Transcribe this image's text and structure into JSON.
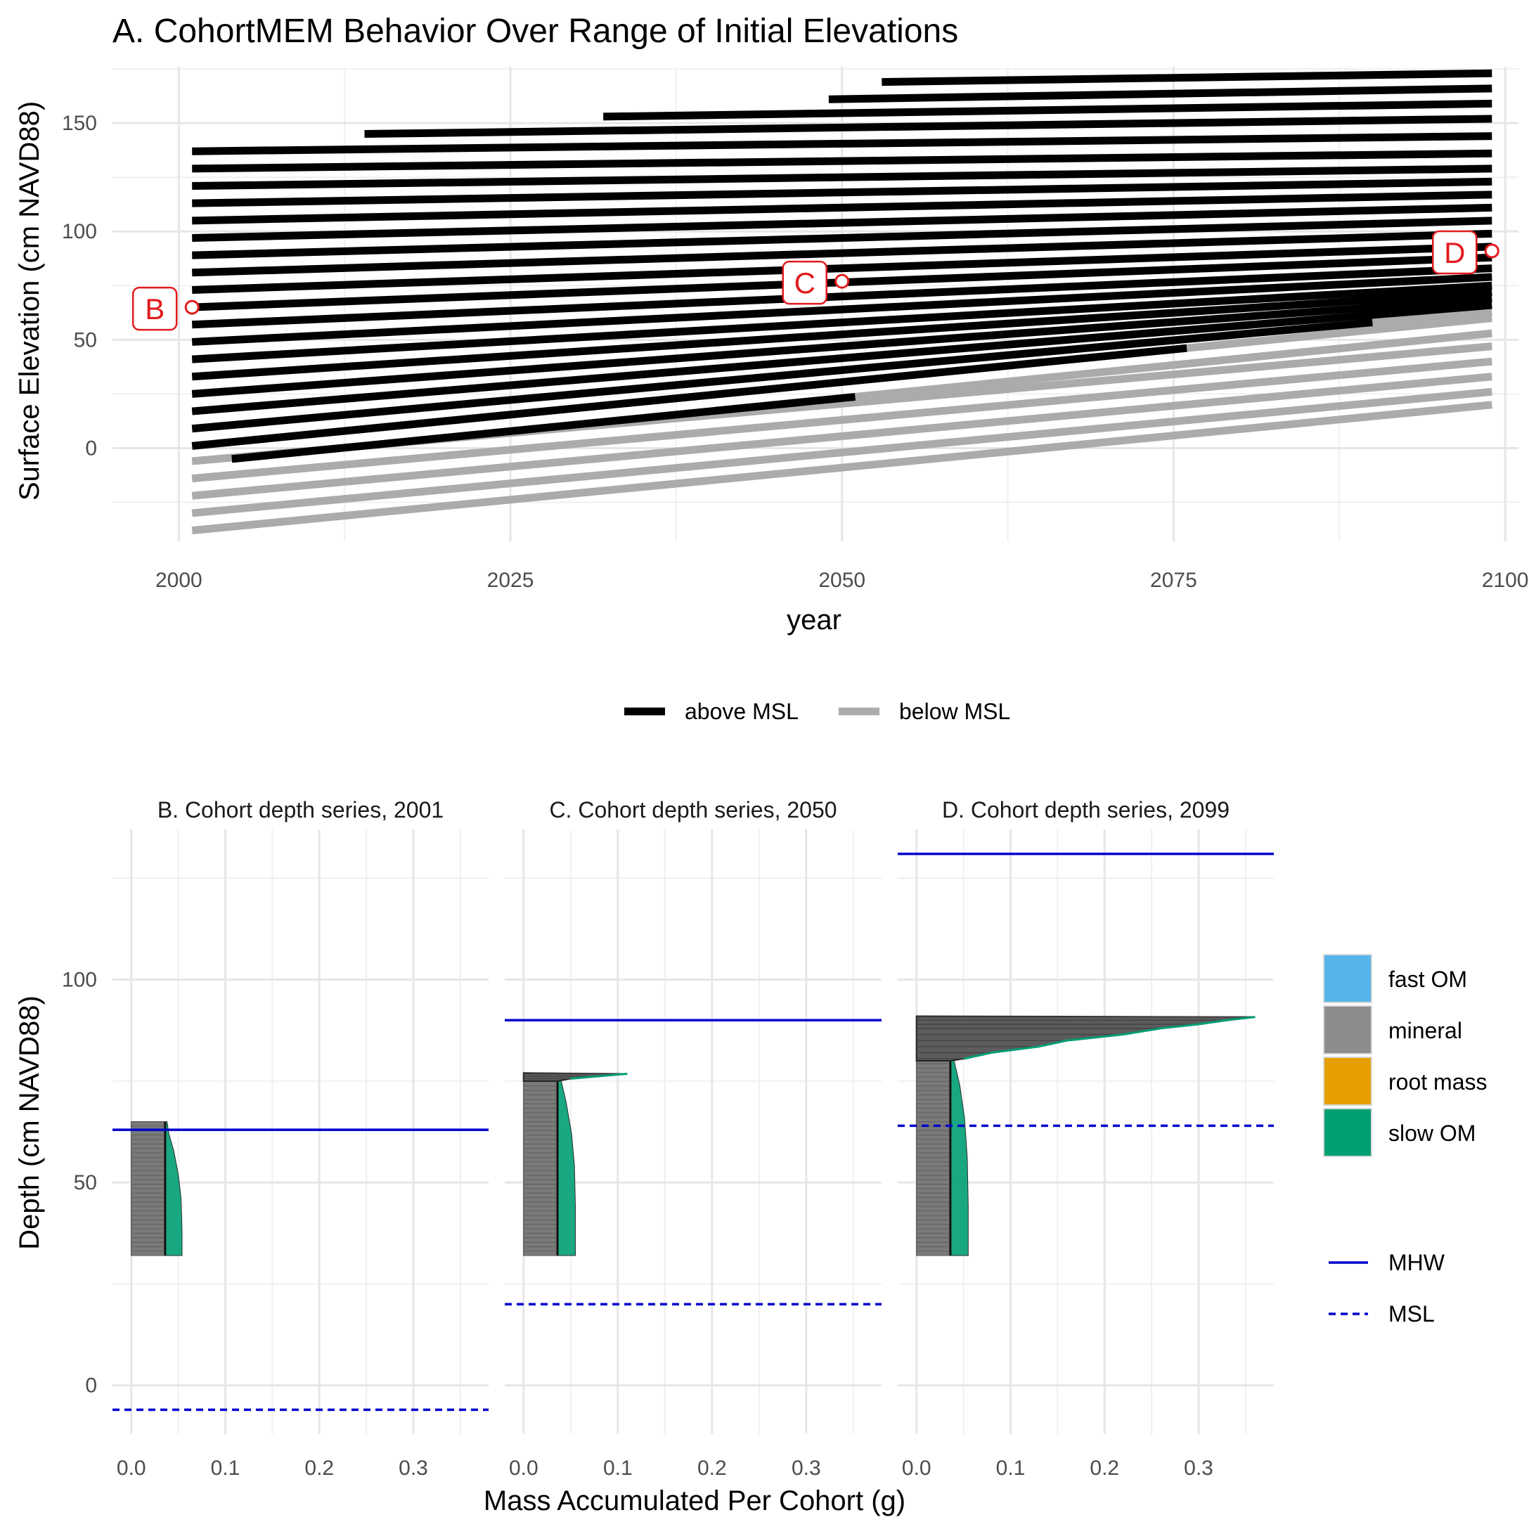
{
  "colors": {
    "above": "#000000",
    "below": "#ababab",
    "marker": "#e31a1c",
    "fast_om": "#56B4E9",
    "mineral": "#8c8c8c",
    "root_mass": "#E69F00",
    "slow_om": "#009E73",
    "tide": "#0000cc"
  },
  "chart_data": [
    {
      "type": "line",
      "title": "A. CohortMEM Behavior Over Range of Initial Elevations",
      "xlabel": "year",
      "ylabel": "Surface Elevation (cm NAVD88)",
      "xlim": [
        1995,
        2101
      ],
      "ylim": [
        -43,
        176
      ],
      "xticks": [
        "2000",
        "2025",
        "2050",
        "2075",
        "2100"
      ],
      "yticks": [
        "0",
        "50",
        "100",
        "150"
      ],
      "grid": true,
      "legend_position": "bottom",
      "legend": [
        {
          "key": "above",
          "label": "above MSL"
        },
        {
          "key": "below",
          "label": "below MSL"
        }
      ],
      "series": [
        {
          "x0": 2001,
          "x1": 2099,
          "y0": -38,
          "y1": 20,
          "cross": null,
          "state": "below"
        },
        {
          "x0": 2001,
          "x1": 2099,
          "y0": -30,
          "y1": 26,
          "cross": null,
          "state": "below"
        },
        {
          "x0": 2001,
          "x1": 2099,
          "y0": -22,
          "y1": 33,
          "cross": null,
          "state": "below"
        },
        {
          "x0": 2001,
          "x1": 2099,
          "y0": -14,
          "y1": 40,
          "cross": null,
          "state": "below"
        },
        {
          "x0": 2001,
          "x1": 2099,
          "y0": -6,
          "y1": 47,
          "cross": null,
          "state": "below"
        },
        {
          "x0": 2004,
          "x1": 2099,
          "y0": -5,
          "y1": 53,
          "cross": 2051,
          "state": "above-then-below"
        },
        {
          "x0": 2001,
          "x1": 2099,
          "y0": 1,
          "y1": 60,
          "cross": 2076,
          "state": "above-then-below"
        },
        {
          "x0": 2001,
          "x1": 2099,
          "y0": 9,
          "y1": 63,
          "cross": 2090,
          "state": "above-then-below"
        },
        {
          "x0": 2001,
          "x1": 2099,
          "y0": 17,
          "y1": 66,
          "cross": null,
          "state": "above"
        },
        {
          "x0": 2001,
          "x1": 2099,
          "y0": 25,
          "y1": 69,
          "cross": null,
          "state": "above"
        },
        {
          "x0": 2001,
          "x1": 2099,
          "y0": 33,
          "y1": 72,
          "cross": null,
          "state": "above"
        },
        {
          "x0": 2001,
          "x1": 2099,
          "y0": 41,
          "y1": 75,
          "cross": null,
          "state": "above"
        },
        {
          "x0": 2001,
          "x1": 2099,
          "y0": 49,
          "y1": 79,
          "cross": null,
          "state": "above"
        },
        {
          "x0": 2001,
          "x1": 2099,
          "y0": 57,
          "y1": 83,
          "cross": null,
          "state": "above"
        },
        {
          "x0": 2001,
          "x1": 2099,
          "y0": 65,
          "y1": 88,
          "cross": null,
          "state": "above"
        },
        {
          "x0": 2001,
          "x1": 2099,
          "y0": 73,
          "y1": 93,
          "cross": null,
          "state": "above"
        },
        {
          "x0": 2001,
          "x1": 2099,
          "y0": 81,
          "y1": 99,
          "cross": null,
          "state": "above"
        },
        {
          "x0": 2001,
          "x1": 2099,
          "y0": 89,
          "y1": 105,
          "cross": null,
          "state": "above"
        },
        {
          "x0": 2001,
          "x1": 2099,
          "y0": 97,
          "y1": 111,
          "cross": null,
          "state": "above"
        },
        {
          "x0": 2001,
          "x1": 2099,
          "y0": 105,
          "y1": 117,
          "cross": null,
          "state": "above"
        },
        {
          "x0": 2001,
          "x1": 2099,
          "y0": 113,
          "y1": 123,
          "cross": null,
          "state": "above"
        },
        {
          "x0": 2001,
          "x1": 2099,
          "y0": 121,
          "y1": 129,
          "cross": null,
          "state": "above"
        },
        {
          "x0": 2001,
          "x1": 2099,
          "y0": 129,
          "y1": 136,
          "cross": null,
          "state": "above"
        },
        {
          "x0": 2001,
          "x1": 2099,
          "y0": 137,
          "y1": 144,
          "cross": null,
          "state": "above"
        },
        {
          "x0": 2014,
          "x1": 2099,
          "y0": 145,
          "y1": 152,
          "cross": null,
          "state": "above"
        },
        {
          "x0": 2032,
          "x1": 2099,
          "y0": 153,
          "y1": 159,
          "cross": null,
          "state": "above"
        },
        {
          "x0": 2049,
          "x1": 2099,
          "y0": 161,
          "y1": 166,
          "cross": null,
          "state": "above"
        },
        {
          "x0": 2053,
          "x1": 2099,
          "y0": 169,
          "y1": 173,
          "cross": null,
          "state": "above"
        }
      ],
      "annotations": [
        {
          "label": "B",
          "x": 2001,
          "y": 65,
          "side": "left"
        },
        {
          "label": "C",
          "x": 2050,
          "y": 77,
          "side": "left"
        },
        {
          "label": "D",
          "x": 2099,
          "y": 91,
          "side": "left"
        }
      ]
    },
    {
      "type": "area",
      "title": "B. Cohort depth series, 2001",
      "xticks": [
        "0.0",
        "0.1",
        "0.2",
        "0.3"
      ],
      "mineral_top": 65,
      "bottom": 32,
      "profile": [
        {
          "depth": 65,
          "mineral": 0.036,
          "total": 0.038
        },
        {
          "depth": 62,
          "mineral": 0.036,
          "total": 0.04
        },
        {
          "depth": 58,
          "mineral": 0.036,
          "total": 0.045
        },
        {
          "depth": 52,
          "mineral": 0.036,
          "total": 0.05
        },
        {
          "depth": 46,
          "mineral": 0.036,
          "total": 0.053
        },
        {
          "depth": 38,
          "mineral": 0.036,
          "total": 0.054
        },
        {
          "depth": 32,
          "mineral": 0.036,
          "total": 0.054
        }
      ],
      "spikes": [],
      "mhw": 63,
      "msl": -6
    },
    {
      "type": "area",
      "title": "C. Cohort depth series, 2050",
      "xticks": [
        "0.0",
        "0.1",
        "0.2",
        "0.3"
      ],
      "mineral_top": 77,
      "bottom": 32,
      "profile": [
        {
          "depth": 75,
          "mineral": 0.036,
          "total": 0.04
        },
        {
          "depth": 70,
          "mineral": 0.036,
          "total": 0.045
        },
        {
          "depth": 62,
          "mineral": 0.036,
          "total": 0.051
        },
        {
          "depth": 54,
          "mineral": 0.036,
          "total": 0.054
        },
        {
          "depth": 44,
          "mineral": 0.036,
          "total": 0.055
        },
        {
          "depth": 32,
          "mineral": 0.036,
          "total": 0.055
        }
      ],
      "spikes": [
        {
          "depth": 76.8,
          "value": 0.11
        },
        {
          "depth": 76.2,
          "value": 0.08
        },
        {
          "depth": 75.6,
          "value": 0.05
        }
      ],
      "mhw": 90,
      "msl": 20
    },
    {
      "type": "area",
      "title": "D. Cohort depth series, 2099",
      "xticks": [
        "0.0",
        "0.1",
        "0.2",
        "0.3"
      ],
      "mineral_top": 91,
      "bottom": 32,
      "profile": [
        {
          "depth": 80,
          "mineral": 0.036,
          "total": 0.04
        },
        {
          "depth": 74,
          "mineral": 0.036,
          "total": 0.046
        },
        {
          "depth": 66,
          "mineral": 0.036,
          "total": 0.051
        },
        {
          "depth": 56,
          "mineral": 0.036,
          "total": 0.054
        },
        {
          "depth": 44,
          "mineral": 0.036,
          "total": 0.055
        },
        {
          "depth": 32,
          "mineral": 0.036,
          "total": 0.055
        }
      ],
      "spikes": [
        {
          "depth": 90.8,
          "value": 0.36
        },
        {
          "depth": 90.0,
          "value": 0.33
        },
        {
          "depth": 89.0,
          "value": 0.3
        },
        {
          "depth": 88.0,
          "value": 0.26
        },
        {
          "depth": 86.5,
          "value": 0.22
        },
        {
          "depth": 85.0,
          "value": 0.16
        },
        {
          "depth": 83.5,
          "value": 0.13
        },
        {
          "depth": 82.0,
          "value": 0.08
        },
        {
          "depth": 80.5,
          "value": 0.05
        }
      ],
      "mhw": 131,
      "msl": 64
    }
  ],
  "facet_axes": {
    "ylabel": "Depth (cm NAVD88)",
    "xlabel": "Mass Accumulated Per Cohort (g)",
    "yticks": [
      "0",
      "50",
      "100"
    ],
    "xlim": [
      -0.02,
      0.38
    ],
    "ylim": [
      -12,
      137
    ]
  },
  "legend_fill": [
    {
      "key": "fast_om",
      "label": "fast OM"
    },
    {
      "key": "mineral",
      "label": "mineral"
    },
    {
      "key": "root_mass",
      "label": "root mass"
    },
    {
      "key": "slow_om",
      "label": "slow OM"
    }
  ],
  "legend_lines": [
    {
      "key": "mhw",
      "label": "MHW",
      "dash": "solid"
    },
    {
      "key": "msl",
      "label": "MSL",
      "dash": "dashed"
    }
  ]
}
